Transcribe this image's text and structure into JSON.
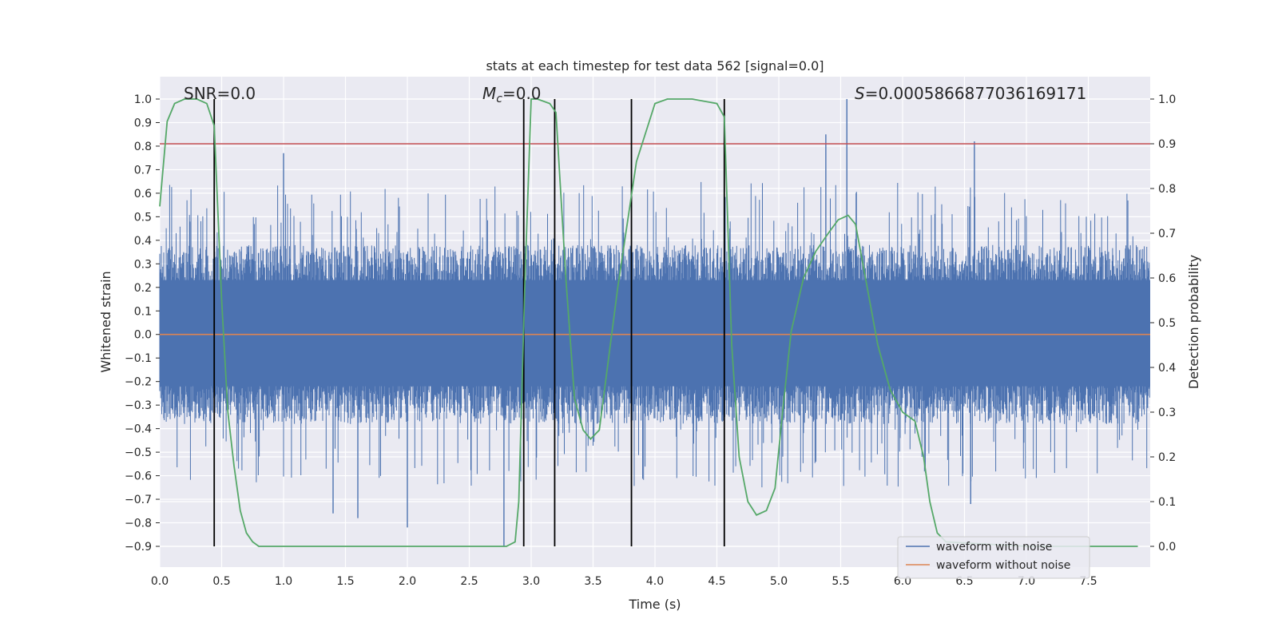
{
  "chart_data": {
    "type": "line",
    "title": "stats at each timestep for test data 562 [signal=0.0]",
    "xlabel": "Time (s)",
    "ylabel": "Whitened strain",
    "y2label": "Detection probability",
    "xlim": [
      0.0,
      8.0
    ],
    "ylim": [
      -1.0,
      1.1
    ],
    "y2lim": [
      -0.05,
      1.05
    ],
    "x_ticks": [
      "0.0",
      "0.5",
      "1.0",
      "1.5",
      "2.0",
      "2.5",
      "3.0",
      "3.5",
      "4.0",
      "4.5",
      "5.0",
      "5.5",
      "6.0",
      "6.5",
      "7.0",
      "7.5"
    ],
    "y_ticks": [
      "−0.9",
      "−0.8",
      "−0.7",
      "−0.6",
      "−0.5",
      "−0.4",
      "−0.3",
      "−0.2",
      "−0.1",
      "0.0",
      "0.1",
      "0.2",
      "0.3",
      "0.4",
      "0.5",
      "0.6",
      "0.7",
      "0.8",
      "0.9",
      "1.0"
    ],
    "y2_ticks": [
      "0.0",
      "0.1",
      "0.2",
      "0.3",
      "0.4",
      "0.5",
      "0.6",
      "0.7",
      "0.8",
      "0.9",
      "1.0"
    ],
    "grid": true,
    "legend_placement": "lower-right",
    "annotations": {
      "snr_prefix": "SNR=",
      "snr_value": "0.0",
      "mc_symbol": "M",
      "mc_sub": "c",
      "mc_value": "=0.0",
      "s_symbol": "S",
      "s_value": "=0.0005866877036169171"
    },
    "series": [
      {
        "name": "waveform with noise",
        "color": "#4c72b0",
        "noise_envelope": {
          "positive_typical": 0.42,
          "negative_typical": -0.4
        },
        "peaks": [
          {
            "x": 1.0,
            "y": 0.77
          },
          {
            "x": 5.38,
            "y": 0.85
          },
          {
            "x": 5.55,
            "y": 1.0
          },
          {
            "x": 6.58,
            "y": 0.82
          },
          {
            "x": 2.78,
            "y": -0.9
          },
          {
            "x": 2.0,
            "y": -0.82
          },
          {
            "x": 1.6,
            "y": -0.78
          },
          {
            "x": 1.4,
            "y": -0.76
          },
          {
            "x": 6.55,
            "y": -0.72
          }
        ]
      },
      {
        "name": "waveform without noise",
        "color": "#dd8452",
        "constant": 0.0
      }
    ],
    "threshold": {
      "y2": 0.9,
      "color": "#c44e52"
    },
    "probability": {
      "color": "#55a868",
      "x": [
        0.0,
        0.06,
        0.12,
        0.2,
        0.3,
        0.38,
        0.44,
        0.5,
        0.55,
        0.6,
        0.65,
        0.7,
        0.75,
        0.8,
        1.0,
        2.0,
        2.4,
        2.8,
        2.87,
        2.9,
        2.95,
        3.0,
        3.05,
        3.15,
        3.2,
        3.28,
        3.35,
        3.42,
        3.48,
        3.55,
        3.7,
        3.85,
        4.0,
        4.1,
        4.3,
        4.5,
        4.56,
        4.62,
        4.68,
        4.75,
        4.82,
        4.9,
        4.97,
        5.03,
        5.1,
        5.2,
        5.3,
        5.4,
        5.48,
        5.56,
        5.62,
        5.7,
        5.8,
        5.9,
        6.0,
        6.1,
        6.17,
        6.22,
        6.28,
        6.35,
        7.0,
        7.9
      ],
      "y": [
        0.76,
        0.95,
        0.99,
        1.0,
        1.0,
        0.99,
        0.94,
        0.55,
        0.3,
        0.18,
        0.08,
        0.03,
        0.01,
        0.0,
        0.0,
        0.0,
        0.0,
        0.0,
        0.01,
        0.1,
        0.6,
        1.0,
        1.0,
        0.99,
        0.97,
        0.6,
        0.33,
        0.26,
        0.24,
        0.26,
        0.58,
        0.86,
        0.99,
        1.0,
        1.0,
        0.99,
        0.96,
        0.45,
        0.2,
        0.1,
        0.07,
        0.08,
        0.13,
        0.3,
        0.48,
        0.6,
        0.66,
        0.7,
        0.73,
        0.74,
        0.72,
        0.6,
        0.45,
        0.35,
        0.3,
        0.28,
        0.2,
        0.1,
        0.03,
        0.01,
        0.0,
        0.0
      ]
    },
    "vlines": [
      0.44,
      2.94,
      3.19,
      3.81,
      4.56
    ]
  },
  "legend": {
    "noise_label": "waveform with noise",
    "clean_label": "waveform without noise"
  }
}
